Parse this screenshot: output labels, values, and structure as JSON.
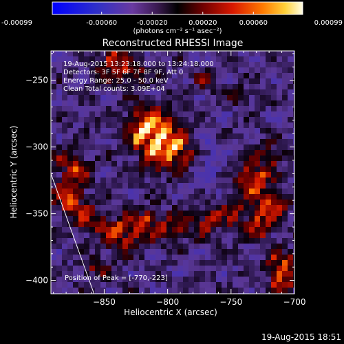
{
  "colorbar": {
    "tick_labels": [
      "-0.00099",
      "-0.00060",
      "-0.00020",
      "0.00020",
      "0.00060",
      "0.00099"
    ],
    "tick_values": [
      -0.00099,
      -0.0006,
      -0.0002,
      0.0002,
      0.0006,
      0.00099
    ],
    "range": [
      -0.00099,
      0.00099
    ],
    "unit_label": "(photons cm⁻² s⁻¹ asec⁻²)"
  },
  "image": {
    "title": "Reconstructed RHESSI Image",
    "xlabel": "Heliocentric X (arcsec)",
    "ylabel": "Heliocentric Y (arcsec)",
    "x_range": [
      -892,
      -700
    ],
    "y_range": [
      -410,
      -228
    ],
    "x_ticks": [
      -850,
      -800,
      -750,
      -700
    ],
    "y_ticks": [
      -250,
      -300,
      -350,
      -400
    ],
    "x_tick_labels": [
      "−850",
      "−800",
      "−750",
      "−700"
    ],
    "y_tick_labels": [
      "−250",
      "−300",
      "−350",
      "−400"
    ],
    "annotations": [
      "19-Aug-2015 13:23:18.000 to 13:24:18.000",
      "Detectors: 3F 5F 6F 7F 8F 9F, Att 0",
      "Energy Range: 25.0 - 50.0 keV",
      "Clean      Total counts: 3.09E+04"
    ],
    "peak_label": "Position of Peak = [-770,-223]",
    "limb_line": [
      [
        -892,
        -320
      ],
      [
        -858,
        -410
      ]
    ]
  },
  "timestamp": "19-Aug-2015 18:51",
  "colors": {
    "background": "#000000",
    "axes": "#ffffff"
  }
}
